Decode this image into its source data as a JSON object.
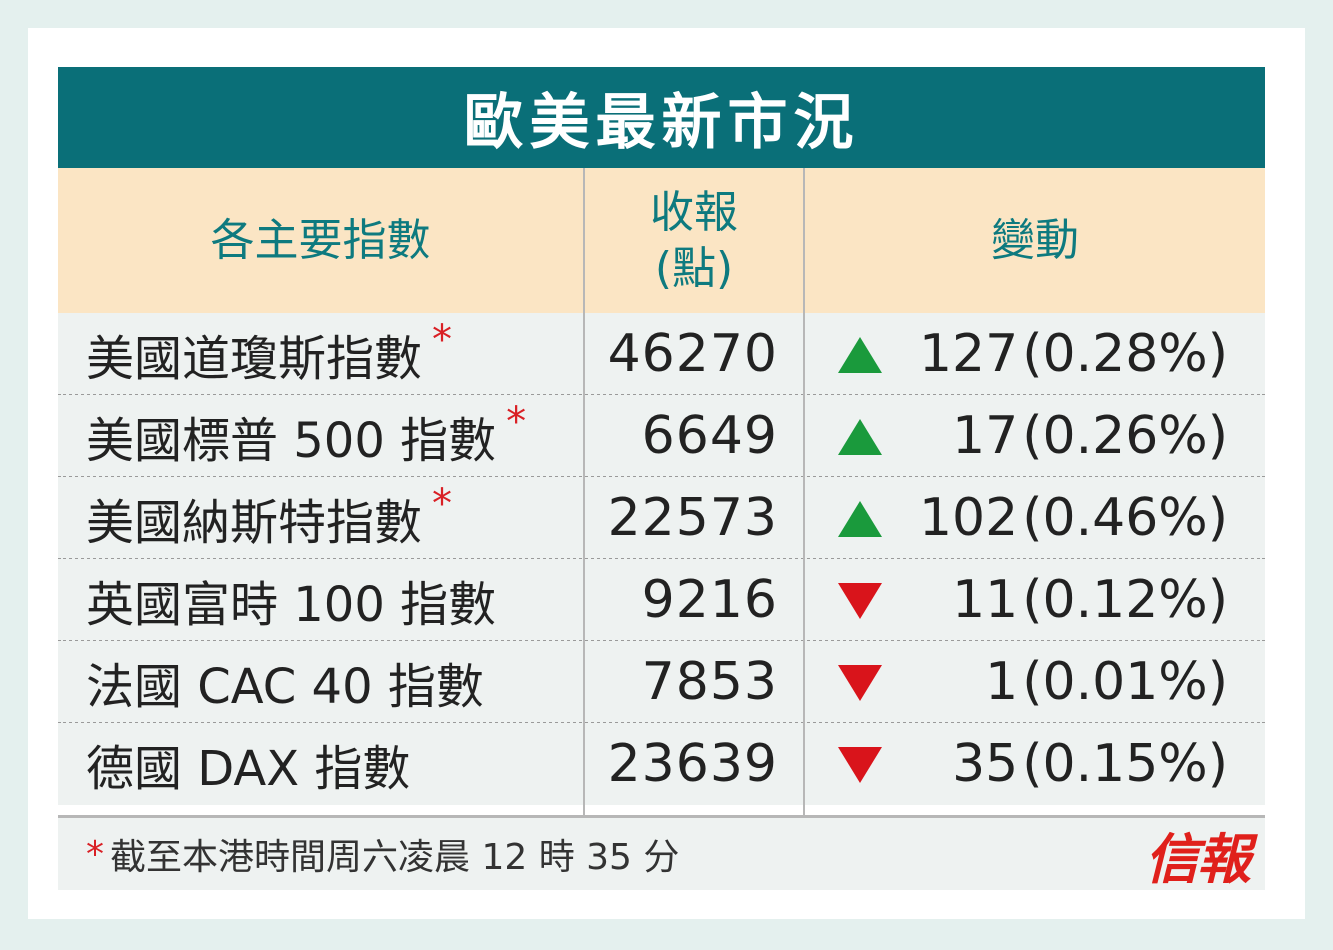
{
  "title": "歐美最新市況",
  "headers": {
    "index": "各主要指數",
    "close_line1": "收報",
    "close_line2": "(點)",
    "change": "變動"
  },
  "colors": {
    "title_bg": "#0a6f78",
    "header_bg": "#fbe5c4",
    "up": "#1a9a3c",
    "down": "#d9141b"
  },
  "chart_data": {
    "type": "table",
    "columns": [
      "各主要指數",
      "收報(點)",
      "變動"
    ],
    "rows": [
      {
        "name": "美國道瓊斯指數",
        "star": "*",
        "close": "46270",
        "direction": "up",
        "change": "127",
        "pct": "(0.28%)"
      },
      {
        "name": "美國標普 500 指數",
        "star": "*",
        "close": "6649",
        "direction": "up",
        "change": "17",
        "pct": "(0.26%)"
      },
      {
        "name": "美國納斯特指數",
        "star": "*",
        "close": "22573",
        "direction": "up",
        "change": "102",
        "pct": "(0.46%)"
      },
      {
        "name": "英國富時 100 指數",
        "star": "",
        "close": "9216",
        "direction": "down",
        "change": "11",
        "pct": "(0.12%)"
      },
      {
        "name": "法國 CAC 40 指數",
        "star": "",
        "close": "7853",
        "direction": "down",
        "change": "1",
        "pct": "(0.01%)"
      },
      {
        "name": "德國 DAX 指數",
        "star": "",
        "close": "23639",
        "direction": "down",
        "change": "35",
        "pct": "(0.15%)"
      }
    ]
  },
  "footer": {
    "star": "*",
    "note": "截至本港時間周六凌晨 12 時 35 分",
    "logo": "信報"
  }
}
